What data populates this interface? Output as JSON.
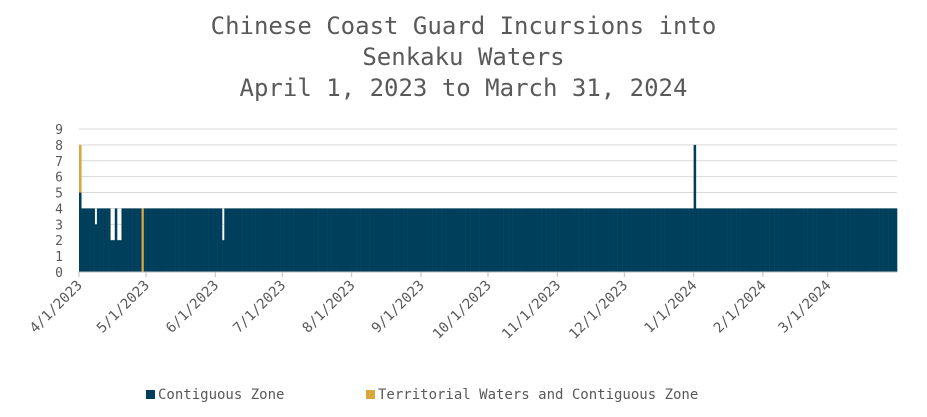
{
  "chart_data": {
    "type": "bar",
    "stacked": true,
    "title_lines": [
      "Chinese Coast Guard Incursions into",
      "Senkaku Waters",
      "April 1, 2023 to March 31, 2024"
    ],
    "xlabel": "",
    "ylabel": "",
    "ylim": [
      0,
      9
    ],
    "yticks": [
      0,
      1,
      2,
      3,
      4,
      5,
      6,
      7,
      8,
      9
    ],
    "grid": true,
    "legend_position": "bottom",
    "x_start": "4/1/2023",
    "x_end": "3/31/2024",
    "x_tick_labels": [
      "4/1/2023",
      "5/1/2023",
      "6/1/2023",
      "7/1/2023",
      "8/1/2023",
      "9/1/2023",
      "10/1/2023",
      "11/1/2023",
      "12/1/2023",
      "1/1/2024",
      "2/1/2024",
      "3/1/2024"
    ],
    "series": [
      {
        "name": "Contiguous Zone",
        "color": "#003f5c",
        "months": [
          {
            "month": "4/2023",
            "values": [
              5,
              4,
              4,
              4,
              4,
              4,
              4,
              3,
              4,
              4,
              4,
              4,
              4,
              4,
              2,
              2,
              4,
              2,
              2,
              4,
              4,
              4,
              4,
              4,
              4,
              4,
              4,
              4,
              0,
              4
            ]
          },
          {
            "month": "5/2023",
            "values": [
              4,
              4,
              4,
              4,
              4,
              4,
              4,
              4,
              4,
              4,
              4,
              4,
              4,
              4,
              4,
              4,
              4,
              4,
              4,
              4,
              4,
              4,
              4,
              4,
              4,
              4,
              4,
              4,
              4,
              4,
              4
            ]
          },
          {
            "month": "6/2023",
            "values": [
              4,
              4,
              4,
              2,
              4,
              4,
              4,
              4,
              4,
              4,
              4,
              4,
              4,
              4,
              4,
              4,
              4,
              4,
              4,
              4,
              4,
              4,
              4,
              4,
              4,
              4,
              4,
              4,
              4,
              4
            ]
          },
          {
            "month": "7/2023",
            "values": [
              4,
              4,
              4,
              4,
              4,
              4,
              4,
              4,
              4,
              4,
              4,
              4,
              4,
              4,
              4,
              4,
              4,
              4,
              4,
              4,
              4,
              4,
              4,
              4,
              4,
              4,
              4,
              4,
              4,
              4,
              4
            ]
          },
          {
            "month": "8/2023",
            "values": [
              4,
              4,
              4,
              4,
              4,
              4,
              4,
              4,
              4,
              4,
              4,
              4,
              4,
              4,
              4,
              4,
              4,
              4,
              4,
              4,
              4,
              4,
              4,
              4,
              4,
              4,
              4,
              4,
              4,
              4,
              4
            ]
          },
          {
            "month": "9/2023",
            "values": [
              4,
              4,
              4,
              4,
              4,
              4,
              4,
              4,
              4,
              4,
              4,
              4,
              4,
              4,
              4,
              4,
              4,
              4,
              4,
              4,
              4,
              4,
              4,
              4,
              4,
              4,
              4,
              4,
              4,
              4
            ]
          },
          {
            "month": "10/2023",
            "values": [
              4,
              4,
              4,
              4,
              4,
              4,
              4,
              4,
              4,
              4,
              4,
              4,
              4,
              4,
              4,
              4,
              4,
              4,
              4,
              4,
              4,
              4,
              4,
              4,
              4,
              4,
              4,
              4,
              4,
              4,
              4
            ]
          },
          {
            "month": "11/2023",
            "values": [
              4,
              4,
              4,
              4,
              4,
              4,
              4,
              4,
              4,
              4,
              4,
              4,
              4,
              4,
              4,
              4,
              4,
              4,
              4,
              4,
              4,
              4,
              4,
              4,
              4,
              4,
              4,
              4,
              4,
              4
            ]
          },
          {
            "month": "12/2023",
            "values": [
              4,
              4,
              4,
              4,
              4,
              4,
              4,
              4,
              4,
              4,
              4,
              4,
              4,
              4,
              4,
              4,
              4,
              4,
              4,
              4,
              4,
              4,
              4,
              4,
              4,
              4,
              4,
              4,
              4,
              4,
              4
            ]
          },
          {
            "month": "1/2024",
            "values": [
              8,
              4,
              4,
              4,
              4,
              4,
              4,
              4,
              4,
              4,
              4,
              4,
              4,
              4,
              4,
              4,
              4,
              4,
              4,
              4,
              4,
              4,
              4,
              4,
              4,
              4,
              4,
              4,
              4,
              4,
              4
            ]
          },
          {
            "month": "2/2024",
            "values": [
              4,
              4,
              4,
              4,
              4,
              4,
              4,
              4,
              4,
              4,
              4,
              4,
              4,
              4,
              4,
              4,
              4,
              4,
              4,
              4,
              4,
              4,
              4,
              4,
              4,
              4,
              4,
              4,
              4
            ]
          },
          {
            "month": "3/2024",
            "values": [
              4,
              4,
              4,
              4,
              4,
              4,
              4,
              4,
              4,
              4,
              4,
              4,
              4,
              4,
              4,
              4,
              4,
              4,
              4,
              4,
              4,
              4,
              4,
              4,
              4,
              4,
              4,
              4,
              4,
              4,
              4
            ]
          }
        ]
      },
      {
        "name": "Territorial Waters and Contiguous Zone",
        "color": "#d9a63d",
        "months": [
          {
            "month": "4/2023",
            "values": [
              3,
              0,
              0,
              0,
              0,
              0,
              0,
              0,
              0,
              0,
              0,
              0,
              0,
              0,
              0,
              0,
              0,
              0,
              0,
              0,
              0,
              0,
              0,
              0,
              0,
              0,
              0,
              0,
              4,
              0
            ]
          },
          {
            "month": "5/2023",
            "values": [
              0,
              0,
              0,
              0,
              0,
              0,
              0,
              0,
              0,
              0,
              0,
              0,
              0,
              0,
              0,
              0,
              0,
              0,
              0,
              0,
              0,
              0,
              0,
              0,
              0,
              0,
              0,
              0,
              0,
              0,
              0
            ]
          },
          {
            "month": "6/2023",
            "values": [
              0,
              0,
              0,
              0,
              0,
              0,
              0,
              0,
              0,
              0,
              0,
              0,
              0,
              0,
              0,
              0,
              0,
              0,
              0,
              0,
              0,
              0,
              0,
              0,
              0,
              0,
              0,
              0,
              0,
              0
            ]
          },
          {
            "month": "7/2023",
            "values": [
              0,
              0,
              0,
              0,
              0,
              0,
              0,
              0,
              0,
              0,
              0,
              0,
              0,
              0,
              0,
              0,
              0,
              0,
              0,
              0,
              0,
              0,
              0,
              0,
              0,
              0,
              0,
              0,
              0,
              0,
              0
            ]
          },
          {
            "month": "8/2023",
            "values": [
              0,
              0,
              0,
              0,
              0,
              0,
              0,
              0,
              0,
              0,
              0,
              0,
              0,
              0,
              0,
              0,
              0,
              0,
              0,
              0,
              0,
              0,
              0,
              0,
              0,
              0,
              0,
              0,
              0,
              0,
              0
            ]
          },
          {
            "month": "9/2023",
            "values": [
              0,
              0,
              0,
              0,
              0,
              0,
              0,
              0,
              0,
              0,
              0,
              0,
              0,
              0,
              0,
              0,
              0,
              0,
              0,
              0,
              0,
              0,
              0,
              0,
              0,
              0,
              0,
              0,
              0,
              0
            ]
          },
          {
            "month": "10/2023",
            "values": [
              0,
              0,
              0,
              0,
              0,
              0,
              0,
              0,
              0,
              0,
              0,
              0,
              0,
              0,
              0,
              0,
              0,
              0,
              0,
              0,
              0,
              0,
              0,
              0,
              0,
              0,
              0,
              0,
              0,
              0,
              0
            ]
          },
          {
            "month": "11/2023",
            "values": [
              0,
              0,
              0,
              0,
              0,
              0,
              0,
              0,
              0,
              0,
              0,
              0,
              0,
              0,
              0,
              0,
              0,
              0,
              0,
              0,
              0,
              0,
              0,
              0,
              0,
              0,
              0,
              0,
              0,
              0
            ]
          },
          {
            "month": "12/2023",
            "values": [
              0,
              0,
              0,
              0,
              0,
              0,
              0,
              0,
              0,
              0,
              0,
              0,
              0,
              0,
              0,
              0,
              0,
              0,
              0,
              0,
              0,
              0,
              0,
              0,
              0,
              0,
              0,
              0,
              0,
              0,
              0
            ]
          },
          {
            "month": "1/2024",
            "values": [
              0,
              0,
              0,
              0,
              0,
              0,
              0,
              0,
              0,
              0,
              0,
              0,
              0,
              0,
              0,
              0,
              0,
              0,
              0,
              0,
              0,
              0,
              0,
              0,
              0,
              0,
              0,
              0,
              0,
              0,
              0
            ]
          },
          {
            "month": "2/2024",
            "values": [
              0,
              0,
              0,
              0,
              0,
              0,
              0,
              0,
              0,
              0,
              0,
              0,
              0,
              0,
              0,
              0,
              0,
              0,
              0,
              0,
              0,
              0,
              0,
              0,
              0,
              0,
              0,
              0,
              0
            ]
          },
          {
            "month": "3/2024",
            "values": [
              0,
              0,
              0,
              0,
              0,
              0,
              0,
              0,
              0,
              0,
              0,
              0,
              0,
              0,
              0,
              0,
              0,
              0,
              0,
              0,
              0,
              0,
              0,
              0,
              0,
              0,
              0,
              0,
              0,
              0,
              0
            ]
          }
        ]
      }
    ]
  }
}
